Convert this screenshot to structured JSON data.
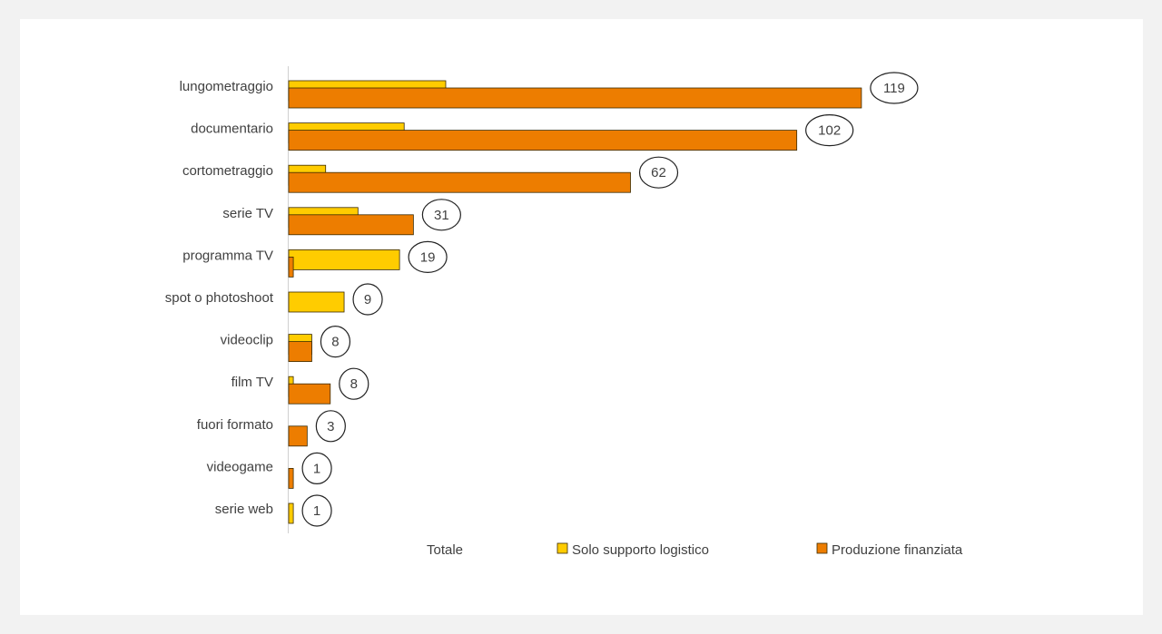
{
  "chart_data": {
    "type": "bar",
    "orientation": "horizontal",
    "categories": [
      "lungometraggio",
      "documentario",
      "cortometraggio",
      "serie TV",
      "programma TV",
      "spot o photoshoot",
      "videoclip",
      "film TV",
      "fuori formato",
      "videogame",
      "serie web"
    ],
    "totals": [
      119,
      102,
      62,
      31,
      19,
      9,
      8,
      8,
      3,
      1,
      1
    ],
    "series": [
      {
        "name": "Solo supporto logistico",
        "color": "#ffcc00",
        "values": [
          34,
          25,
          8,
          15,
          24,
          12,
          5,
          1,
          0,
          0,
          1
        ]
      },
      {
        "name": "Produzione finanziata",
        "color": "#ed7d00",
        "values": [
          124,
          110,
          74,
          27,
          1,
          0,
          5,
          9,
          4,
          1,
          0
        ]
      }
    ],
    "legend": {
      "labels": [
        "Totale",
        "Solo supporto logistico",
        "Produzione finanziata"
      ],
      "position": "bottom"
    },
    "xlim": [
      0,
      125
    ],
    "grid": false
  }
}
